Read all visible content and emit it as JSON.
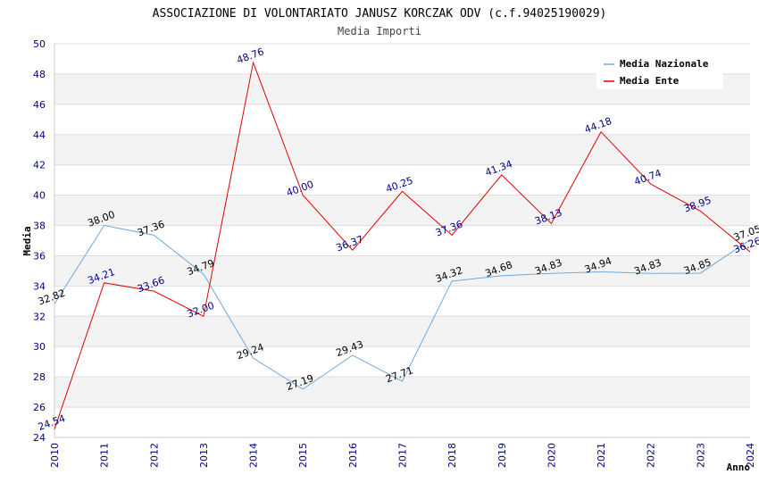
{
  "chart_data": {
    "type": "line",
    "title": "ASSOCIAZIONE DI VOLONTARIATO JANUSZ KORCZAK ODV (c.f.94025190029)",
    "subtitle": "Media Importi",
    "xlabel": "Anno",
    "ylabel": "Media",
    "ylim": [
      24,
      50
    ],
    "yticks": [
      24,
      26,
      28,
      30,
      32,
      34,
      36,
      38,
      40,
      42,
      44,
      46,
      48,
      50
    ],
    "x": [
      "2010",
      "2011",
      "2012",
      "2013",
      "2014",
      "2015",
      "2016",
      "2017",
      "2018",
      "2019",
      "2020",
      "2021",
      "2022",
      "2023",
      "2024"
    ],
    "legend_position": "top-right",
    "grid": true,
    "series": [
      {
        "name": "Media Nazionale",
        "color": "#6fa8dc",
        "label_color": "#000000",
        "values": [
          32.82,
          38.0,
          37.36,
          34.79,
          29.24,
          27.19,
          29.43,
          27.71,
          34.32,
          34.68,
          34.83,
          34.94,
          34.83,
          34.85,
          37.05
        ],
        "labels": [
          "32.82",
          "38.00",
          "37.36",
          "34.79",
          "29.24",
          "27.19",
          "29.43",
          "27.71",
          "34.32",
          "34.68",
          "34.83",
          "34.94",
          "34.83",
          "34.85",
          "37.05"
        ]
      },
      {
        "name": "Media Ente",
        "color": "#e00000",
        "label_color": "#00008b",
        "values": [
          24.54,
          34.21,
          33.66,
          32.0,
          48.76,
          40.0,
          36.37,
          40.25,
          37.36,
          41.34,
          38.13,
          44.18,
          40.74,
          38.95,
          36.26
        ],
        "labels": [
          "24.54",
          "34.21",
          "33.66",
          "32.00",
          "48.76",
          "40.00",
          "36.37",
          "40.25",
          "37.36",
          "41.34",
          "38.13",
          "44.18",
          "40.74",
          "38.95",
          "36.26"
        ]
      }
    ]
  }
}
